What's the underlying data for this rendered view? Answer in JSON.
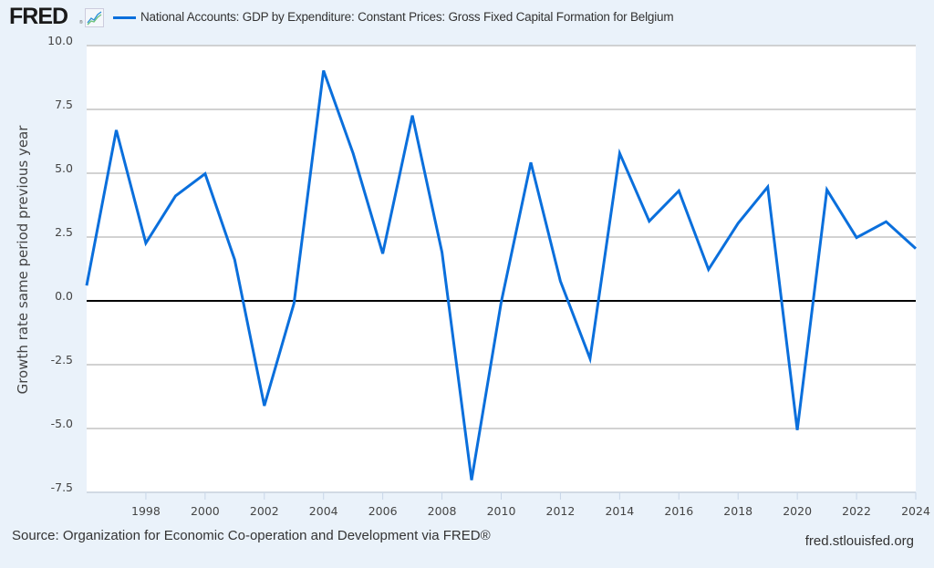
{
  "header": {
    "logo_text": "FRED",
    "logo_reg": "®",
    "logo_icon": "line-chart-icon",
    "legend_label": "National Accounts: GDP by Expenditure: Constant Prices: Gross Fixed Capital Formation for Belgium"
  },
  "colors": {
    "series": "#0a6fdc",
    "background": "#eaf2fa",
    "plot_background": "#ffffff",
    "grid": "#c4c4c4",
    "zero_line": "#000000"
  },
  "footer": {
    "source": "Source: Organization for Economic Co-operation and Development via FRED®",
    "site": "fred.stlouisfed.org"
  },
  "chart_data": {
    "type": "line",
    "title": "National Accounts: GDP by Expenditure: Constant Prices: Gross Fixed Capital Formation for Belgium",
    "xlabel": "",
    "ylabel": "Growth rate same period previous year",
    "xlim": [
      1996,
      2024
    ],
    "ylim": [
      -7.5,
      10.0
    ],
    "yticks": [
      10.0,
      7.5,
      5.0,
      2.5,
      0.0,
      -2.5,
      -5.0,
      -7.5
    ],
    "ytick_labels": [
      "10.0",
      "7.5",
      "5.0",
      "2.5",
      "0.0",
      "-2.5",
      "-5.0",
      "-7.5"
    ],
    "xticks": [
      1998,
      2000,
      2002,
      2004,
      2006,
      2008,
      2010,
      2012,
      2014,
      2016,
      2018,
      2020,
      2022,
      2024
    ],
    "xtick_labels": [
      "1998",
      "2000",
      "2002",
      "2004",
      "2006",
      "2008",
      "2010",
      "2012",
      "2014",
      "2016",
      "2018",
      "2020",
      "2022",
      "2024"
    ],
    "grid": true,
    "legend": "top-left",
    "series": [
      {
        "name": "National Accounts: GDP by Expenditure: Constant Prices: Gross Fixed Capital Formation for Belgium",
        "x": [
          1996,
          1997,
          1998,
          1999,
          2000,
          2001,
          2002,
          2003,
          2004,
          2005,
          2006,
          2007,
          2008,
          2009,
          2010,
          2011,
          2012,
          2013,
          2014,
          2015,
          2016,
          2017,
          2018,
          2019,
          2020,
          2021,
          2022,
          2023,
          2024
        ],
        "values": [
          0.6,
          6.69,
          2.26,
          4.11,
          4.98,
          1.61,
          -4.11,
          -0.1,
          9.02,
          5.77,
          1.85,
          7.26,
          1.9,
          -7.02,
          -0.05,
          5.42,
          0.77,
          -2.26,
          5.78,
          3.12,
          4.31,
          1.23,
          3.04,
          4.46,
          -5.06,
          4.35,
          2.48,
          3.1,
          2.05
        ]
      }
    ]
  }
}
